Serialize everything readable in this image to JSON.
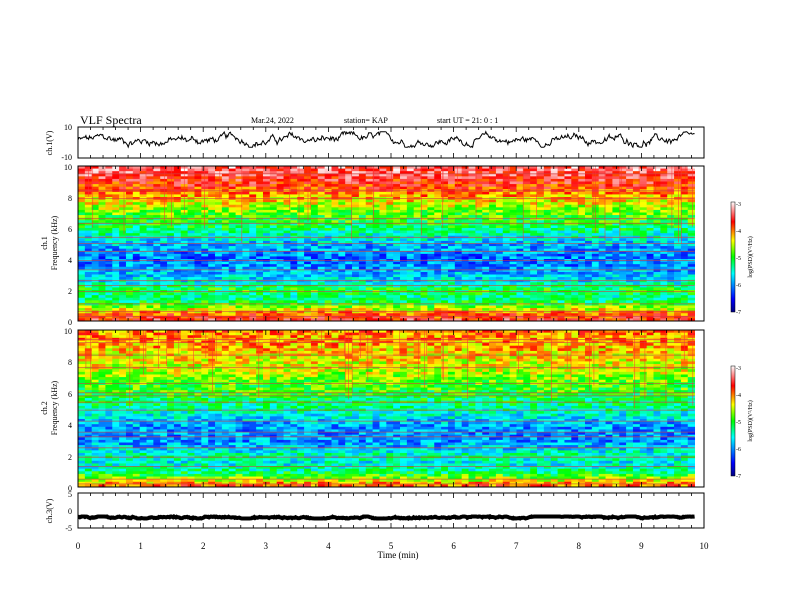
{
  "header": {
    "title": "VLF Spectra",
    "date": "Mar.24, 2022",
    "station": "station= KAP",
    "start": "start UT =  21: 0  : 1"
  },
  "chart_data": [
    {
      "type": "line",
      "panel": "ch1-waveform",
      "ylabel": "ch.1(V)",
      "ylim": [
        -10,
        10
      ],
      "yticks": [
        "10",
        "-10"
      ],
      "xlim": [
        0,
        10
      ],
      "duration_min": 9.85,
      "approx_mean": 1.5,
      "approx_range": [
        -3,
        7
      ],
      "color": "#000000"
    },
    {
      "type": "heatmap",
      "panel": "ch1-spectrogram",
      "ylabel_top": "ch.1",
      "ylabel": "Frequency (kHz)",
      "ylim": [
        0,
        10
      ],
      "yticks": [
        "0",
        "2",
        "4",
        "6",
        "8",
        "10"
      ],
      "xlim": [
        0,
        10
      ],
      "duration_min": 9.85,
      "color_range": [
        -7,
        -3
      ],
      "colorbar_label": "log(PSD)(V²/Hz)",
      "colorbar_ticks": [
        "-3",
        "-4",
        "-5",
        "-6",
        "-7"
      ],
      "band_profile": [
        [
          0.0,
          -3.6
        ],
        [
          0.5,
          -4.0
        ],
        [
          1.0,
          -4.9
        ],
        [
          1.5,
          -5.4
        ],
        [
          2.0,
          -5.0
        ],
        [
          2.5,
          -5.6
        ],
        [
          3.0,
          -5.8
        ],
        [
          3.5,
          -6.0
        ],
        [
          4.0,
          -6.1
        ],
        [
          4.5,
          -6.0
        ],
        [
          5.0,
          -5.8
        ],
        [
          5.5,
          -5.5
        ],
        [
          6.0,
          -5.2
        ],
        [
          6.5,
          -5.0
        ],
        [
          7.0,
          -4.8
        ],
        [
          7.5,
          -4.5
        ],
        [
          8.0,
          -4.2
        ],
        [
          8.5,
          -3.9
        ],
        [
          9.0,
          -3.7
        ],
        [
          9.5,
          -3.5
        ],
        [
          10.0,
          -3.4
        ]
      ],
      "line_freqs_khz": [
        0.3,
        0.6,
        1.1,
        1.9,
        2.3,
        2.6,
        3.3,
        3.9,
        4.5,
        5.0,
        5.4,
        6.3,
        6.6,
        7.9,
        8.4,
        9.5
      ]
    },
    {
      "type": "heatmap",
      "panel": "ch2-spectrogram",
      "ylabel_top": "ch.2",
      "ylabel": "Frequency (kHz)",
      "ylim": [
        0,
        10
      ],
      "yticks": [
        "0",
        "2",
        "4",
        "6",
        "8",
        "10"
      ],
      "xlim": [
        0,
        10
      ],
      "duration_min": 9.85,
      "color_range": [
        -7,
        -3
      ],
      "colorbar_label": "log(PSD)(V²/Hz)",
      "colorbar_ticks": [
        "-3",
        "-4",
        "-5",
        "-6",
        "-7"
      ],
      "band_profile": [
        [
          0.0,
          -3.8
        ],
        [
          0.5,
          -4.6
        ],
        [
          1.0,
          -5.3
        ],
        [
          1.5,
          -5.6
        ],
        [
          2.0,
          -5.4
        ],
        [
          2.5,
          -5.8
        ],
        [
          3.0,
          -6.0
        ],
        [
          3.5,
          -6.0
        ],
        [
          4.0,
          -5.9
        ],
        [
          4.5,
          -5.6
        ],
        [
          5.0,
          -5.4
        ],
        [
          5.5,
          -5.2
        ],
        [
          6.0,
          -5.0
        ],
        [
          6.5,
          -4.9
        ],
        [
          7.0,
          -4.7
        ],
        [
          7.5,
          -4.5
        ],
        [
          8.0,
          -4.4
        ],
        [
          8.5,
          -4.3
        ],
        [
          9.0,
          -4.2
        ],
        [
          9.5,
          -4.1
        ],
        [
          10.0,
          -4.0
        ]
      ],
      "line_freqs_khz": [
        0.2,
        0.5,
        1.3,
        1.9,
        2.5,
        3.2,
        3.5,
        4.2,
        4.9,
        5.4,
        5.8,
        6.0,
        6.6,
        7.6,
        8.4,
        9.2,
        9.4
      ]
    },
    {
      "type": "line",
      "panel": "ch3-waveform",
      "ylabel": "ch.3(V)",
      "ylim": [
        -5,
        5
      ],
      "yticks": [
        "5",
        "0",
        "-5"
      ],
      "xlim": [
        0,
        10
      ],
      "xlabel": "Time (min)",
      "xticks": [
        "0",
        "1",
        "2",
        "3",
        "4",
        "5",
        "6",
        "7",
        "8",
        "9",
        "10"
      ],
      "duration_min": 9.85,
      "approx_mean": -2.0,
      "approx_range": [
        -2.3,
        -1.7
      ],
      "color": "#000000"
    }
  ]
}
